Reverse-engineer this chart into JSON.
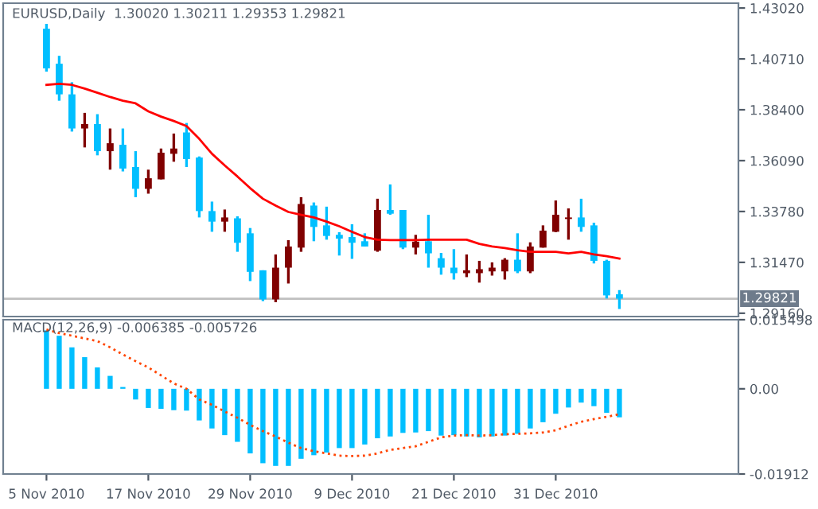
{
  "chart_data": [
    {
      "type": "candlestick",
      "title": "EURUSD,Daily",
      "subtitle": "1.30020 1.30211 1.29353 1.29821",
      "categories": [
        null,
        null,
        null,
        null,
        null,
        null,
        null,
        null,
        null,
        null,
        null,
        null,
        null,
        null,
        null,
        null,
        null,
        null,
        null,
        null,
        null,
        null,
        null,
        null,
        null,
        null,
        null,
        null,
        null,
        null,
        null,
        null,
        null,
        null,
        null,
        null,
        null,
        null,
        null,
        null,
        null,
        null,
        null,
        null,
        null,
        null
      ],
      "ohlc": [
        [
          1.4208,
          1.423,
          1.4013,
          1.4028
        ],
        [
          1.4049,
          1.4085,
          1.3881,
          1.391
        ],
        [
          1.391,
          1.3965,
          1.3741,
          1.3755
        ],
        [
          1.3755,
          1.3826,
          1.3669,
          1.3775
        ],
        [
          1.3775,
          1.382,
          1.3633,
          1.3652
        ],
        [
          1.3652,
          1.3755,
          1.3568,
          1.3688
        ],
        [
          1.3681,
          1.3755,
          1.356,
          1.3573
        ],
        [
          1.358,
          1.3652,
          1.3443,
          1.3481
        ],
        [
          1.3481,
          1.3568,
          1.3459,
          1.3529
        ],
        [
          1.3524,
          1.3664,
          1.3524,
          1.3645
        ],
        [
          1.364,
          1.3732,
          1.3604,
          1.3664
        ],
        [
          1.3737,
          1.378,
          1.358,
          1.3616
        ],
        [
          1.3623,
          1.3628,
          1.3351,
          1.338
        ],
        [
          1.338,
          1.3423,
          1.3286,
          1.3332
        ],
        [
          1.3332,
          1.3387,
          1.3286,
          1.3351
        ],
        [
          1.3347,
          1.3356,
          1.3195,
          1.3236
        ],
        [
          1.3279,
          1.3303,
          1.3062,
          1.3104
        ],
        [
          1.3111,
          1.3111,
          1.2971,
          1.2979
        ],
        [
          1.2979,
          1.3183,
          1.2966,
          1.3123
        ],
        [
          1.3123,
          1.3248,
          1.3051,
          1.3219
        ],
        [
          1.3214,
          1.3443,
          1.3195,
          1.3412
        ],
        [
          1.3405,
          1.3419,
          1.3243,
          1.3308
        ],
        [
          1.3315,
          1.34,
          1.325,
          1.3267
        ],
        [
          1.3272,
          1.3284,
          1.3178,
          1.3255
        ],
        [
          1.3262,
          1.332,
          1.3163,
          1.3236
        ],
        [
          1.3243,
          1.3279,
          1.3219,
          1.3219
        ],
        [
          1.32,
          1.3436,
          1.3195,
          1.3385
        ],
        [
          1.3385,
          1.3501,
          1.3363,
          1.3368
        ],
        [
          1.3385,
          1.3385,
          1.3207,
          1.3214
        ],
        [
          1.3214,
          1.3272,
          1.3183,
          1.3241
        ],
        [
          1.3243,
          1.3363,
          1.3123,
          1.3188
        ],
        [
          1.3166,
          1.319,
          1.3091,
          1.3123
        ],
        [
          1.3123,
          1.3207,
          1.3069,
          1.3098
        ],
        [
          1.3098,
          1.3183,
          1.308,
          1.3111
        ],
        [
          1.3098,
          1.3154,
          1.3055,
          1.3116
        ],
        [
          1.3106,
          1.3147,
          1.3087,
          1.3123
        ],
        [
          1.3106,
          1.3166,
          1.3069,
          1.3159
        ],
        [
          1.3159,
          1.3279,
          1.3098,
          1.3106
        ],
        [
          1.3106,
          1.3238,
          1.3098,
          1.3219
        ],
        [
          1.3214,
          1.3315,
          1.3214,
          1.3291
        ],
        [
          1.3286,
          1.3428,
          1.3284,
          1.3363
        ],
        [
          1.3344,
          1.3392,
          1.325,
          1.3351
        ],
        [
          1.3351,
          1.3436,
          1.3286,
          1.3308
        ],
        [
          1.3315,
          1.3327,
          1.3142,
          1.3154
        ],
        [
          1.3154,
          1.3159,
          1.2983,
          1.2997
        ],
        [
          1.3002,
          1.30211,
          1.29353,
          1.29821
        ]
      ],
      "colors": [
        "#00bfff",
        "#00bfff",
        "#00bfff",
        "#800000",
        "#00bfff",
        "#800000",
        "#00bfff",
        "#00bfff",
        "#800000",
        "#800000",
        "#800000",
        "#00bfff",
        "#00bfff",
        "#00bfff",
        "#800000",
        "#00bfff",
        "#00bfff",
        "#00bfff",
        "#800000",
        "#800000",
        "#800000",
        "#00bfff",
        "#00bfff",
        "#00bfff",
        "#00bfff",
        "#00bfff",
        "#800000",
        "#00bfff",
        "#00bfff",
        "#800000",
        "#00bfff",
        "#00bfff",
        "#00bfff",
        "#800000",
        "#800000",
        "#800000",
        "#800000",
        "#00bfff",
        "#800000",
        "#800000",
        "#800000",
        "#800000",
        "#00bfff",
        "#00bfff",
        "#00bfff",
        "#00bfff"
      ],
      "series": [
        {
          "type": "line",
          "color": "#ff0000",
          "values": [
            1.3953,
            1.3958,
            1.3953,
            1.3936,
            1.3917,
            1.3898,
            1.3881,
            1.3869,
            1.3833,
            1.3809,
            1.3789,
            1.3766,
            1.3708,
            1.364,
            1.3587,
            1.3537,
            1.3484,
            1.3436,
            1.3405,
            1.3376,
            1.3363,
            1.3351,
            1.3332,
            1.3311,
            1.3286,
            1.3262,
            1.325,
            1.3248,
            1.3248,
            1.3248,
            1.325,
            1.325,
            1.325,
            1.325,
            1.3231,
            1.3219,
            1.3212,
            1.3202,
            1.3195,
            1.3195,
            1.3195,
            1.3188,
            1.3195,
            1.3183,
            1.3175,
            1.3164
          ]
        }
      ],
      "ylim": [
        1.2901,
        1.4324
      ],
      "yticks": [
        {
          "value": 1.4302,
          "label": "1.43020"
        },
        {
          "value": 1.4071,
          "label": "1.40710"
        },
        {
          "value": 1.384,
          "label": "1.38400"
        },
        {
          "value": 1.3609,
          "label": "1.36090"
        },
        {
          "value": 1.3378,
          "label": "1.33780"
        },
        {
          "value": 1.3147,
          "label": "1.31470"
        },
        {
          "value": 1.2916,
          "label": "1.29160"
        }
      ],
      "ref_lines": [
        {
          "axis": "y",
          "value": 1.29821,
          "label": "1.29821",
          "color": "#c0c0c0"
        }
      ]
    },
    {
      "type": "bar",
      "title": "MACD(12,26,9) -0.006385 -0.005726",
      "categories": [
        "5 Nov 2010",
        null,
        null,
        null,
        null,
        null,
        null,
        null,
        "17 Nov 2010",
        null,
        null,
        null,
        null,
        null,
        null,
        null,
        "29 Nov 2010",
        null,
        null,
        null,
        null,
        null,
        null,
        null,
        "9 Dec 2010",
        null,
        null,
        null,
        null,
        null,
        null,
        null,
        "21 Dec 2010",
        null,
        null,
        null,
        null,
        null,
        null,
        null,
        "31 Dec 2010",
        null,
        null,
        null,
        null,
        null
      ],
      "series": [
        {
          "type": "bar",
          "color": "#00bfff",
          "values": [
            0.0131,
            0.0119,
            0.0093,
            0.0071,
            0.0048,
            0.0029,
            0.0004,
            -0.0024,
            -0.0043,
            -0.0045,
            -0.0048,
            -0.0049,
            -0.0071,
            -0.0089,
            -0.0104,
            -0.0119,
            -0.0145,
            -0.0167,
            -0.0173,
            -0.0173,
            -0.0157,
            -0.0149,
            -0.0143,
            -0.0133,
            -0.0133,
            -0.0125,
            -0.0111,
            -0.0107,
            -0.0099,
            -0.0098,
            -0.0095,
            -0.0105,
            -0.0104,
            -0.0107,
            -0.0109,
            -0.0107,
            -0.0105,
            -0.0101,
            -0.0089,
            -0.0075,
            -0.0056,
            -0.0042,
            -0.0031,
            -0.0039,
            -0.0054,
            -0.0064
          ]
        },
        {
          "type": "line",
          "color": "#ff4500",
          "line_style": "dotted",
          "values": [
            0.0133,
            0.0125,
            0.0119,
            0.0113,
            0.0107,
            0.0093,
            0.0077,
            0.0062,
            0.0048,
            0.003,
            0.0012,
            0.0,
            -0.0024,
            -0.0036,
            -0.0051,
            -0.0065,
            -0.0081,
            -0.0095,
            -0.0107,
            -0.0121,
            -0.0133,
            -0.014,
            -0.0145,
            -0.015,
            -0.0151,
            -0.015,
            -0.0145,
            -0.0137,
            -0.0133,
            -0.0129,
            -0.0119,
            -0.0109,
            -0.0105,
            -0.0104,
            -0.0105,
            -0.0104,
            -0.0102,
            -0.0101,
            -0.01,
            -0.0098,
            -0.0093,
            -0.0083,
            -0.0074,
            -0.0068,
            -0.0063,
            -0.0057
          ]
        }
      ],
      "ylim": [
        -0.01912,
        0.015498
      ],
      "yticks": [
        {
          "value": 0.015498,
          "label": "0.015498"
        },
        {
          "value": 0,
          "label": "0.00"
        },
        {
          "value": -0.01912,
          "label": "-0.01912"
        }
      ]
    }
  ]
}
